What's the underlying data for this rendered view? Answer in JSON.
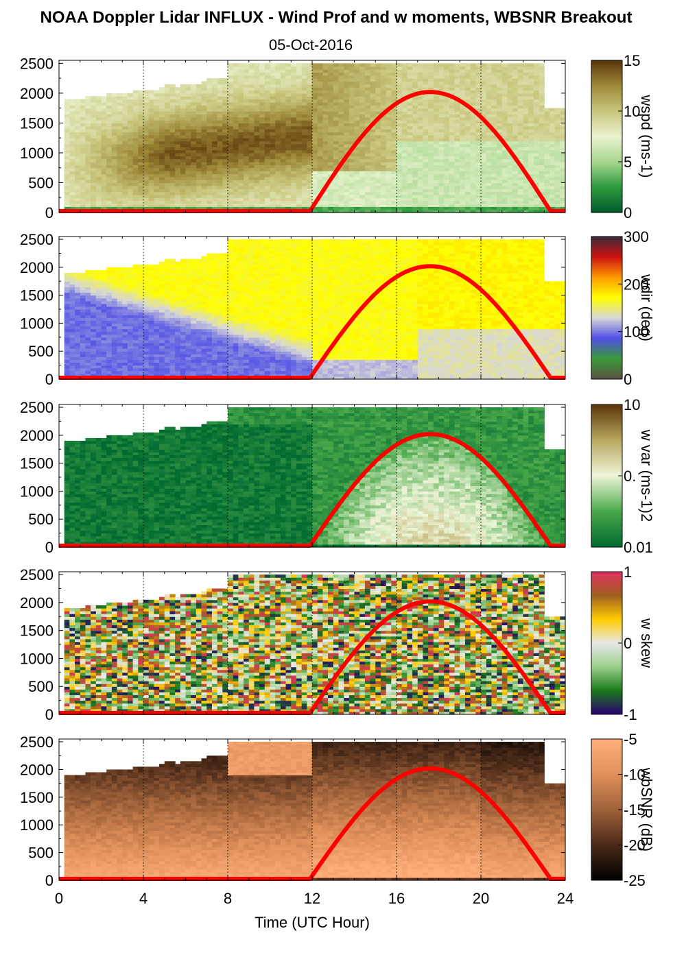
{
  "chart_data": {
    "type": "heatmap",
    "title": "NOAA Doppler Lidar INFLUX - Wind Prof and w moments, WBSNR Breakout",
    "subtitle": "05-Oct-2016",
    "xlabel": "Time (UTC Hour)",
    "xlim": [
      0,
      24
    ],
    "xticks": [
      "0",
      "4",
      "8",
      "12",
      "16",
      "20",
      "24"
    ],
    "ylim": [
      0,
      2550
    ],
    "yticks": [
      "0",
      "500",
      "1000",
      "1500",
      "2000",
      "2500"
    ],
    "sunrise_hour": 11.9,
    "sunset_hour": 23.3,
    "solar_curve_peak": 2020,
    "solar_curve_color": "#ff0000",
    "panels": [
      {
        "variable": "wspd",
        "colorbar_label": "wspd (ms-1)",
        "colorbar_ticks": [
          "15",
          "10",
          "5",
          "0"
        ],
        "colors": [
          "#005a2a",
          "#2e9a3e",
          "#a6d78e",
          "#eaf3cf",
          "#c7c47a",
          "#9e8a3a",
          "#5a3408"
        ]
      },
      {
        "variable": "wdir",
        "colorbar_label": "wdir (deg)",
        "colorbar_ticks": [
          "300",
          "200",
          "100",
          "0"
        ],
        "colors": [
          "#5a5040",
          "#3a9a3a",
          "#4f4fe6",
          "#d8d8d8",
          "#ffff00",
          "#ff9900",
          "#cc1111",
          "#3a2a3a"
        ]
      },
      {
        "variable": "w var",
        "colorbar_label": "w var (ms-1)2",
        "colorbar_ticks": [
          "10",
          "0.",
          "0.01"
        ],
        "colors": [
          "#006a30",
          "#4aa84a",
          "#eef5d8",
          "#b8a860",
          "#5a3408"
        ]
      },
      {
        "variable": "w skew",
        "colorbar_label": "w skew",
        "colorbar_ticks": [
          "1",
          "0",
          "-1"
        ],
        "colors": [
          "#2a0070",
          "#1a7a1a",
          "#9ad08a",
          "#e8e8e8",
          "#ffcc00",
          "#a06020",
          "#e03060"
        ]
      },
      {
        "variable": "wbSNR",
        "colorbar_label": "wbSNR (dB)",
        "colorbar_ticks": [
          "-5",
          "-10",
          "-15",
          "-20",
          "-25"
        ],
        "colors": [
          "#000000",
          "#4a2a18",
          "#a0623a",
          "#e0905a",
          "#ffb07a"
        ]
      }
    ]
  }
}
